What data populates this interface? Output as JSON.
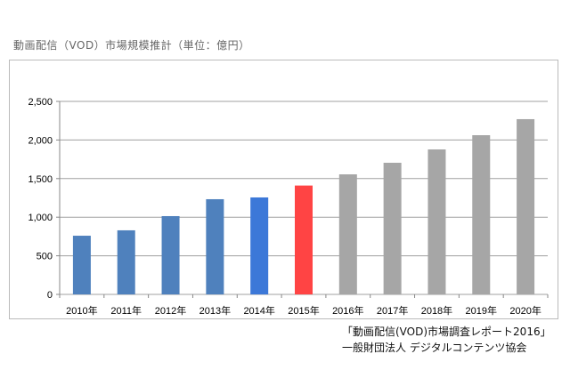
{
  "chart_data": {
    "type": "bar",
    "title": "動画配信（VOD）市場規模推計（単位：億円）",
    "categories": [
      "2010年",
      "2011年",
      "2012年",
      "2013年",
      "2014年",
      "2015年",
      "2016年",
      "2017年",
      "2018年",
      "2019年",
      "2020年"
    ],
    "values": [
      760,
      830,
      1014,
      1233,
      1256,
      1410,
      1555,
      1705,
      1878,
      2062,
      2270
    ],
    "colors": [
      "#4f81bd",
      "#4f81bd",
      "#4f81bd",
      "#4f81bd",
      "#3c78d8",
      "#ff4444",
      "#a6a6a6",
      "#a6a6a6",
      "#a6a6a6",
      "#a6a6a6",
      "#a6a6a6"
    ],
    "ylim": [
      0,
      2500
    ],
    "yticks": [
      0,
      500,
      1000,
      1500,
      2000,
      2500
    ],
    "ytick_labels": [
      "0",
      "500",
      "1,000",
      "1,500",
      "2,000",
      "2,500"
    ],
    "grid": true,
    "xlabel": "",
    "ylabel": ""
  },
  "source": {
    "line1": "「動画配信(VOD)市場調査レポート2016」",
    "line2": "一般財団法人 デジタルコンテンツ協会"
  }
}
